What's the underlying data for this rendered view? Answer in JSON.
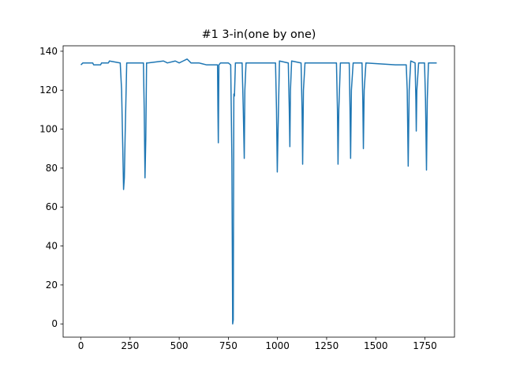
{
  "chart_data": {
    "type": "line",
    "title": "#1 3-in(one by one)",
    "x": [
      0,
      10,
      60,
      65,
      100,
      105,
      140,
      145,
      200,
      207,
      213,
      217,
      221,
      225,
      233,
      240,
      318,
      322,
      326,
      330,
      334,
      340,
      420,
      440,
      480,
      500,
      520,
      540,
      560,
      600,
      640,
      660,
      695,
      697,
      699,
      702,
      710,
      750,
      762,
      768,
      772,
      775,
      778,
      781,
      786,
      790,
      820,
      826,
      831,
      834,
      840,
      900,
      990,
      995,
      999,
      1003,
      1010,
      1055,
      1060,
      1063,
      1066,
      1072,
      1120,
      1125,
      1128,
      1132,
      1140,
      1300,
      1305,
      1308,
      1312,
      1320,
      1365,
      1369,
      1372,
      1376,
      1385,
      1430,
      1434,
      1437,
      1441,
      1450,
      1600,
      1655,
      1660,
      1665,
      1670,
      1678,
      1700,
      1704,
      1706,
      1709,
      1718,
      1748,
      1753,
      1758,
      1762,
      1768,
      1810
    ],
    "series": [
      {
        "color": "#1f77b4",
        "values": [
          133,
          134,
          134,
          133,
          133,
          134,
          134,
          135,
          134,
          120,
          90,
          69,
          75,
          97,
          134,
          134,
          134,
          110,
          75,
          95,
          134,
          134,
          135,
          134,
          135,
          134,
          135,
          136,
          134,
          134,
          133,
          133,
          133,
          110,
          93,
          133,
          134,
          134,
          133,
          85,
          0,
          2,
          118,
          117,
          134,
          134,
          134,
          110,
          85,
          120,
          134,
          134,
          134,
          110,
          78,
          100,
          135,
          134,
          110,
          91,
          120,
          135,
          134,
          110,
          82,
          120,
          134,
          134,
          110,
          82,
          110,
          134,
          134,
          110,
          85,
          120,
          134,
          134,
          115,
          90,
          120,
          134,
          133,
          133,
          120,
          81,
          120,
          135,
          134,
          115,
          99,
          120,
          134,
          134,
          115,
          79,
          115,
          134,
          134
        ]
      }
    ],
    "xlim": [
      -90.5,
      1900.5
    ],
    "ylim": [
      -6.8,
      142.8
    ],
    "xticks": [
      0,
      250,
      500,
      750,
      1000,
      1250,
      1500,
      1750
    ],
    "yticks": [
      0,
      20,
      40,
      60,
      80,
      100,
      120,
      140
    ]
  }
}
